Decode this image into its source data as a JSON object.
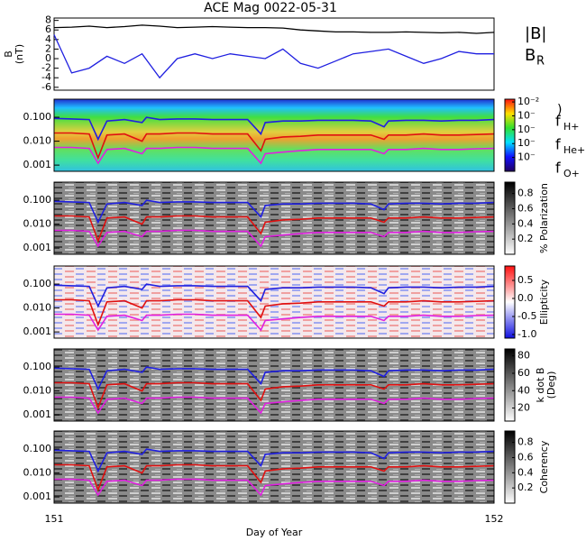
{
  "chart_data": [
    {
      "type": "line",
      "title": "ACE Mag 0022-05-31",
      "ylabel": "B",
      "ylabel_unit": "(nT)",
      "x": [
        151.0,
        151.04,
        151.08,
        151.12,
        151.16,
        151.2,
        151.24,
        151.28,
        151.32,
        151.36,
        151.4,
        151.44,
        151.48,
        151.52,
        151.56,
        151.6,
        151.64,
        151.68,
        151.72,
        151.76,
        151.8,
        151.84,
        151.88,
        151.92,
        151.96,
        152.0
      ],
      "series": [
        {
          "name": "|B|",
          "color": "#000000",
          "values": [
            6.5,
            6.6,
            6.8,
            6.5,
            6.7,
            7.0,
            6.8,
            6.5,
            6.6,
            6.7,
            6.6,
            6.5,
            6.5,
            6.4,
            6.0,
            5.8,
            5.6,
            5.6,
            5.5,
            5.5,
            5.6,
            5.5,
            5.4,
            5.5,
            5.3,
            5.5
          ]
        },
        {
          "name": "B",
          "subscript": "R",
          "color": "#1f1fe0",
          "values": [
            5,
            -3,
            -2,
            0.5,
            -1,
            1,
            -4,
            0,
            1,
            0,
            1,
            0.5,
            0,
            2,
            -1,
            -2,
            -0.5,
            1,
            1.5,
            2,
            0.5,
            -1,
            0,
            1.5,
            1,
            1
          ]
        }
      ],
      "xlim": [
        151,
        152
      ],
      "ylim": [
        -6.6,
        8.5
      ],
      "yticks": [
        -6,
        -4,
        -2,
        0,
        2,
        4,
        6,
        8
      ]
    },
    {
      "type": "spectrogram",
      "xlabel": "Day of Year",
      "x": [
        151.0,
        151.04,
        151.08,
        151.1,
        151.12,
        151.16,
        151.2,
        151.21,
        151.24,
        151.28,
        151.32,
        151.36,
        151.4,
        151.44,
        151.47,
        151.48,
        151.52,
        151.56,
        151.6,
        151.64,
        151.68,
        151.72,
        151.75,
        151.76,
        151.8,
        151.84,
        151.88,
        151.92,
        151.96,
        152.0
      ],
      "xlim": [
        151,
        152
      ],
      "xticks": [
        151,
        152
      ],
      "ylog": true,
      "ylim": [
        0.00055,
        0.57
      ],
      "yticks": [
        {
          "value": 0.001,
          "label": "0.001"
        },
        {
          "value": 0.01,
          "label": "0.010"
        },
        {
          "value": 0.1,
          "label": "0.100"
        }
      ],
      "series": [
        {
          "name": "f",
          "subscript": "H+",
          "color": "#1f1fe0",
          "values": [
            0.09,
            0.085,
            0.08,
            0.012,
            0.07,
            0.08,
            0.06,
            0.1,
            0.08,
            0.085,
            0.085,
            0.08,
            0.08,
            0.08,
            0.02,
            0.06,
            0.07,
            0.07,
            0.075,
            0.075,
            0.075,
            0.07,
            0.04,
            0.07,
            0.075,
            0.075,
            0.07,
            0.075,
            0.075,
            0.08
          ]
        },
        {
          "name": "f",
          "subscript": "He+",
          "color": "#e01010",
          "values": [
            0.022,
            0.022,
            0.02,
            0.002,
            0.018,
            0.02,
            0.01,
            0.02,
            0.02,
            0.022,
            0.022,
            0.02,
            0.02,
            0.02,
            0.004,
            0.012,
            0.015,
            0.016,
            0.018,
            0.018,
            0.018,
            0.018,
            0.012,
            0.018,
            0.018,
            0.02,
            0.018,
            0.018,
            0.019,
            0.02
          ]
        },
        {
          "name": "f",
          "subscript": "O+",
          "color": "#e020e0",
          "values": [
            0.0055,
            0.0055,
            0.005,
            0.0012,
            0.0045,
            0.005,
            0.003,
            0.005,
            0.005,
            0.0055,
            0.0055,
            0.005,
            0.005,
            0.005,
            0.0012,
            0.003,
            0.0035,
            0.004,
            0.0045,
            0.0045,
            0.0045,
            0.0045,
            0.003,
            0.0045,
            0.0045,
            0.005,
            0.0045,
            0.0045,
            0.0048,
            0.005
          ]
        }
      ],
      "panels": [
        {
          "colormap": "rainbow",
          "colorbar_label": ")",
          "clim": [
            -7,
            -1.8
          ],
          "cticks": [
            {
              "value": -2,
              "label": "10⁻²"
            },
            {
              "value": -3,
              "label": "10⁻"
            },
            {
              "value": -4,
              "label": "10⁻"
            },
            {
              "value": -5,
              "label": "10⁻"
            },
            {
              "value": -6,
              "label": "10⁻"
            }
          ]
        },
        {
          "colormap": "gray",
          "colorbar_label": "% Polarization",
          "clim": [
            0,
            0.95
          ],
          "cticks": [
            0.2,
            0.4,
            0.6,
            0.8
          ]
        },
        {
          "colormap": "bwr",
          "colorbar_label": "Ellipticity",
          "clim": [
            -1.1,
            0.9
          ],
          "cticks": [
            {
              "value": -1,
              "label": "-1.0"
            },
            -0.5,
            {
              "value": 0,
              "label": "0.0"
            },
            0.5
          ]
        },
        {
          "colormap": "gray",
          "colorbar_label": "k dot B",
          "colorbar_unit": "(Deg)",
          "clim": [
            5,
            88
          ],
          "cticks": [
            20,
            40,
            60,
            80
          ]
        },
        {
          "colormap": "gray",
          "colorbar_label": "Coherency",
          "clim": [
            0,
            0.95
          ],
          "cticks": [
            0.2,
            0.4,
            0.6,
            0.8
          ]
        }
      ]
    }
  ]
}
